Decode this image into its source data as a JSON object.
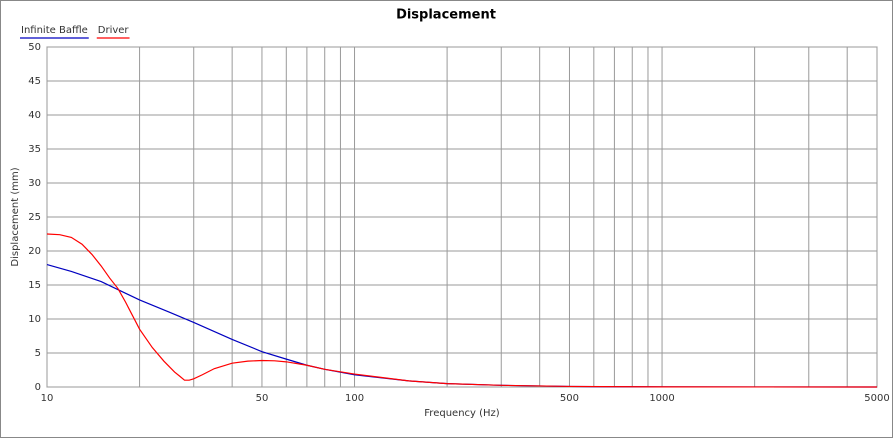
{
  "chart_data": {
    "type": "line",
    "title": "Displacement",
    "xlabel": "Frequency (Hz)",
    "ylabel": "Displacement (mm)",
    "xscale": "log",
    "grid": true,
    "legend": "top-left",
    "xlim": [
      10,
      5000
    ],
    "ylim": [
      0,
      50
    ],
    "xticks": [
      10,
      50,
      100,
      500,
      1000,
      5000
    ],
    "xminor": [
      20,
      30,
      40,
      60,
      70,
      80,
      90,
      200,
      300,
      400,
      600,
      700,
      800,
      900,
      2000,
      3000,
      4000
    ],
    "yticks": [
      0,
      5,
      10,
      15,
      20,
      25,
      30,
      35,
      40,
      45,
      50
    ],
    "series": [
      {
        "name": "Infinite Baffle",
        "color": "#0000c0",
        "x": [
          10,
          12,
          15,
          20,
          25,
          30,
          40,
          50,
          60,
          70,
          80,
          100,
          150,
          200,
          300,
          500,
          600,
          1000,
          2000,
          5000
        ],
        "values": [
          18,
          17,
          15.5,
          12.8,
          11,
          9.5,
          7,
          5.2,
          4.1,
          3.2,
          2.6,
          1.8,
          0.9,
          0.5,
          0.25,
          0.08,
          0.05,
          0.02,
          0.01,
          0
        ]
      },
      {
        "name": "Driver",
        "color": "#ff0000",
        "x": [
          10,
          11,
          12,
          13,
          14,
          15,
          16,
          17,
          18,
          20,
          22,
          24,
          26,
          27,
          28,
          29,
          30,
          32,
          35,
          40,
          45,
          50,
          55,
          60,
          70,
          80,
          100,
          150,
          200,
          300,
          500,
          1000,
          2000,
          5000
        ],
        "values": [
          22.5,
          22.4,
          22,
          21,
          19.5,
          17.8,
          16,
          14.5,
          12.5,
          8.5,
          5.8,
          3.8,
          2.2,
          1.6,
          1.0,
          1.0,
          1.2,
          1.8,
          2.7,
          3.5,
          3.8,
          3.9,
          3.85,
          3.7,
          3.2,
          2.6,
          1.9,
          0.9,
          0.5,
          0.25,
          0.08,
          0.02,
          0.01,
          0
        ]
      }
    ]
  }
}
